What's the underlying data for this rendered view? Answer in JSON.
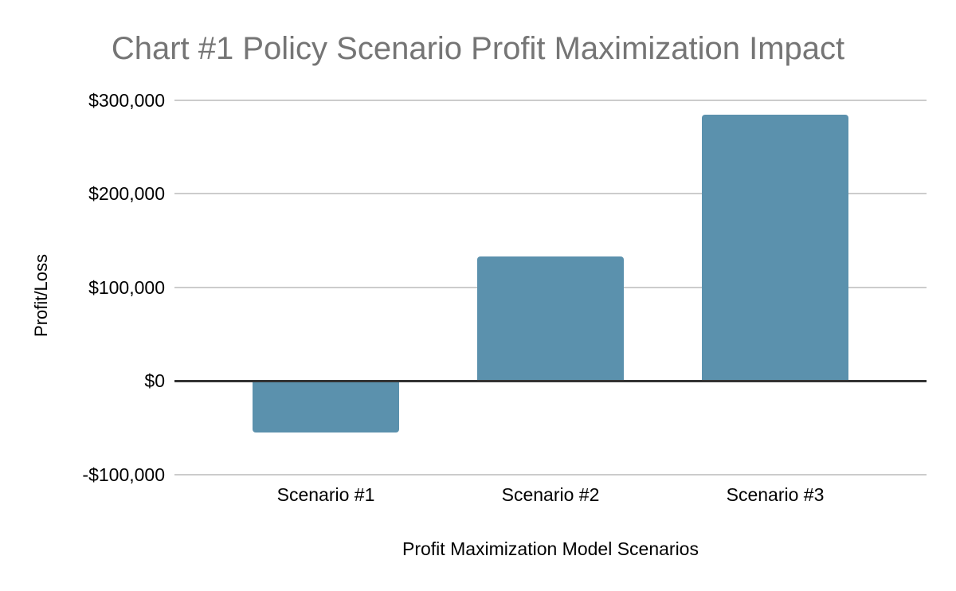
{
  "chart_data": {
    "type": "bar",
    "title": "Chart #1 Policy Scenario Profit Maximization Impact",
    "xlabel": "Profit Maximization Model Scenarios",
    "ylabel": "Profit/Loss",
    "categories": [
      "Scenario #1",
      "Scenario #2",
      "Scenario #3"
    ],
    "values": [
      -55000,
      133000,
      284000
    ],
    "ylim": [
      -100000,
      300000
    ],
    "yticks": [
      {
        "value": 300000,
        "label": "$300,000"
      },
      {
        "value": 200000,
        "label": "$200,000"
      },
      {
        "value": 100000,
        "label": "$100,000"
      },
      {
        "value": 0,
        "label": "$0"
      },
      {
        "value": -100000,
        "label": "-$100,000"
      }
    ],
    "grid": true,
    "legend": "none",
    "colors": {
      "bar": "#5B91AD",
      "title_text": "#757575",
      "axis_text": "#000000",
      "gridline": "#CCCCCC",
      "zero_line": "#333333",
      "background": "#FFFFFF"
    }
  }
}
